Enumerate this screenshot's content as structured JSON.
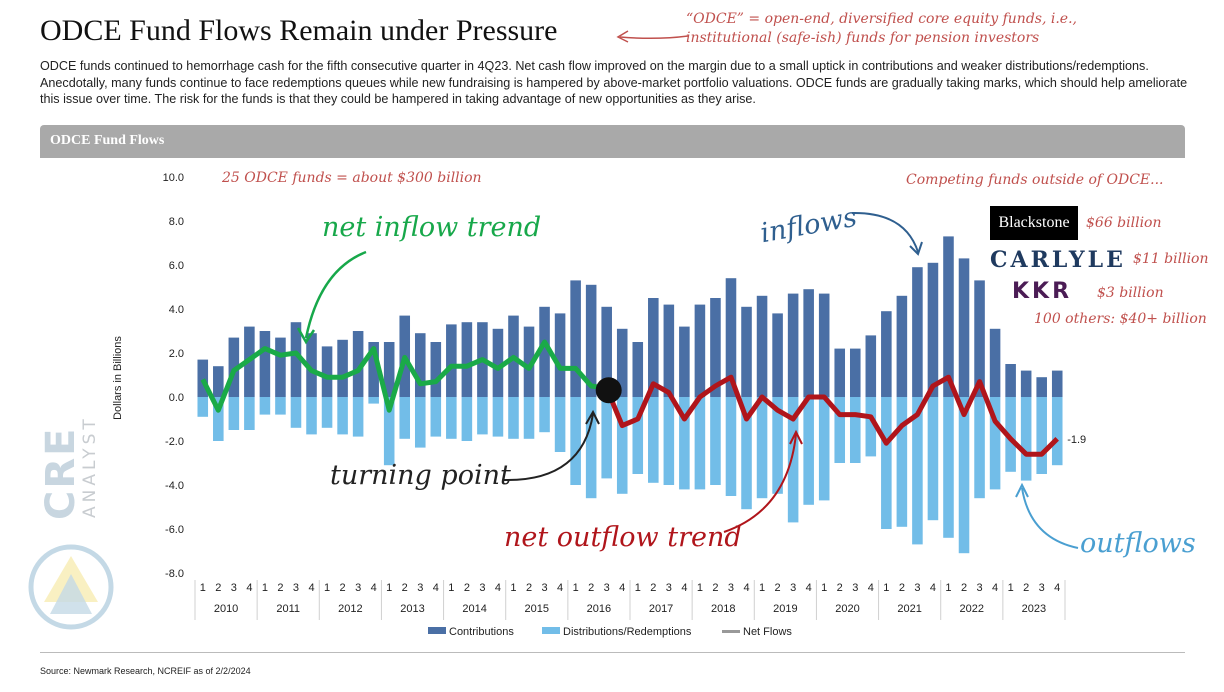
{
  "title": "ODCE Fund Flows Remain under Pressure",
  "annotation_odce": "“ODCE” = open-end, diversified core equity funds, i.e., institutional (safe-ish) funds for pension investors",
  "description": "ODCE funds continued to hemorrhage cash for the fifth consecutive quarter in 4Q23. Net cash flow improved on the margin due to a small uptick in contributions and weaker distributions/redemptions. Anecdotally, many funds continue to face redemptions queues while new fundraising is hampered by above-market portfolio valuations. ODCE funds are gradually taking marks, which should help ameliorate this issue over time. The risk for the funds is that they could be hampered in taking advantage of new opportunities as they arise.",
  "chart_title": "ODCE Fund Flows",
  "notes": {
    "fund_count": "25 ODCE funds = about $300 billion",
    "competing": "Competing funds outside of ODCE...",
    "net_inflow": "net inflow trend",
    "inflows": "inflows",
    "turning_point": "turning point",
    "net_outflow": "net outflow trend",
    "outflows": "outflows"
  },
  "competitors": [
    {
      "name": "Blackstone",
      "amount": "$66 billion"
    },
    {
      "name": "CARLYLE",
      "amount": "$11 billion"
    },
    {
      "name": "KKR",
      "amount": "$3 billion"
    },
    {
      "name": "100 others:",
      "amount": "$40+ billion"
    }
  ],
  "logo": {
    "line1": "CRE",
    "line2": "ANALYST"
  },
  "colors": {
    "contributions": "#4a6fa5",
    "distributions": "#72bde8",
    "net_positive": "#1aaa48",
    "net_negative": "#b0151b",
    "note_red": "#d9534f",
    "note_blue": "#2f5f8f",
    "note_light_blue": "#4a9fd1"
  },
  "chart_data": {
    "type": "bar",
    "title": "ODCE Fund Flows",
    "ylabel": "Dollars in Billions",
    "ylim": [
      -8,
      10
    ],
    "yticks": [
      "10.0",
      "8.0",
      "6.0",
      "4.0",
      "2.0",
      "0.0",
      "-2.0",
      "-4.0",
      "-6.0",
      "-8.0"
    ],
    "quarters": [
      "1",
      "2",
      "3",
      "4"
    ],
    "years": [
      "2010",
      "2011",
      "2012",
      "2013",
      "2014",
      "2015",
      "2016",
      "2017",
      "2018",
      "2019",
      "2020",
      "2021",
      "2022",
      "2023"
    ],
    "series": [
      {
        "name": "Contributions",
        "values": [
          1.7,
          1.4,
          2.7,
          3.2,
          3.0,
          2.7,
          3.4,
          2.9,
          2.3,
          2.6,
          3.0,
          2.5,
          2.5,
          3.7,
          2.9,
          2.5,
          3.3,
          3.4,
          3.4,
          3.1,
          3.7,
          3.2,
          4.1,
          3.8,
          5.3,
          5.1,
          4.1,
          3.1,
          2.5,
          4.5,
          4.2,
          3.2,
          4.2,
          4.5,
          5.4,
          4.1,
          4.6,
          3.8,
          4.7,
          4.9,
          4.7,
          2.2,
          2.2,
          2.8,
          3.9,
          4.6,
          5.9,
          6.1,
          7.3,
          6.3,
          5.3,
          3.1,
          1.5,
          1.2,
          0.9,
          1.2
        ]
      },
      {
        "name": "Distributions/Redemptions",
        "values": [
          -0.9,
          -2.0,
          -1.5,
          -1.5,
          -0.8,
          -0.8,
          -1.4,
          -1.7,
          -1.4,
          -1.7,
          -1.8,
          -0.3,
          -3.1,
          -1.9,
          -2.3,
          -1.8,
          -1.9,
          -2.0,
          -1.7,
          -1.8,
          -1.9,
          -1.9,
          -1.6,
          -2.5,
          -4.0,
          -4.6,
          -3.7,
          -4.4,
          -3.5,
          -3.9,
          -4.0,
          -4.2,
          -4.2,
          -4.0,
          -4.5,
          -5.1,
          -4.6,
          -4.4,
          -5.7,
          -4.9,
          -4.7,
          -3.0,
          -3.0,
          -2.7,
          -6.0,
          -5.9,
          -6.7,
          -5.6,
          -6.4,
          -7.1,
          -4.6,
          -4.2,
          -3.4,
          -3.8,
          -3.5,
          -3.1
        ]
      },
      {
        "name": "Net Flows",
        "values": [
          0.8,
          -0.6,
          1.2,
          1.7,
          2.2,
          1.9,
          2.0,
          1.2,
          0.9,
          0.9,
          1.2,
          2.2,
          -0.6,
          1.8,
          0.6,
          0.7,
          1.4,
          1.4,
          1.7,
          1.3,
          1.8,
          1.3,
          2.5,
          1.3,
          1.3,
          0.5,
          0.4,
          -1.3,
          -1.0,
          0.6,
          0.2,
          -1.0,
          0.0,
          0.5,
          0.9,
          -1.0,
          -0.0,
          -0.6,
          -1.0,
          -0.0,
          -0.0,
          -0.8,
          -0.8,
          -0.9,
          -2.1,
          -1.3,
          -0.8,
          0.5,
          0.9,
          -0.8,
          0.7,
          -1.1,
          -1.9,
          -2.6,
          -2.6,
          -1.9
        ]
      }
    ],
    "last_label": "-1.9",
    "legend": [
      "Contributions",
      "Distributions/Redemptions",
      "Net Flows"
    ],
    "legend_position": "bottom",
    "grid": false
  },
  "source": "Source: Newmark Research, NCREIF as of 2/2/2024"
}
